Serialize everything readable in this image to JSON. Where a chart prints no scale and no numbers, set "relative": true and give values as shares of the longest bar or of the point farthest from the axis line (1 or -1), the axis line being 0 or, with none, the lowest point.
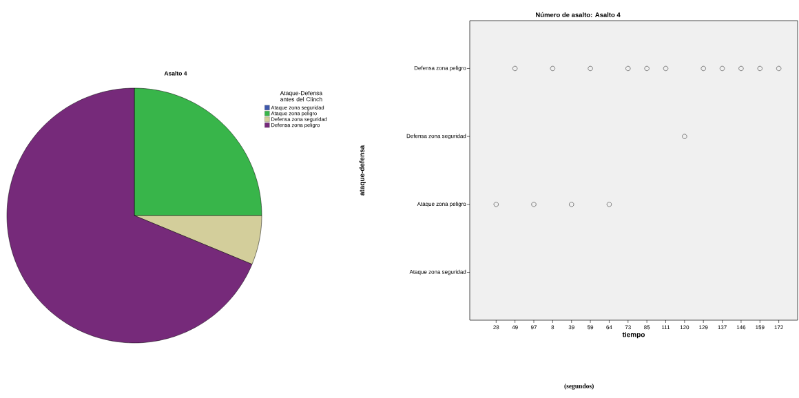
{
  "chart_data": [
    {
      "type": "pie",
      "title": "Asalto 4",
      "legend_title": "Ataque-Defensa antes del Clinch",
      "categories": [
        "Ataque zona seguridad",
        "Ataque zona peligro",
        "Defensa zona seguridad",
        "Defensa zona peligro"
      ],
      "values": [
        0,
        25,
        6.25,
        68.75
      ],
      "colors": [
        "#3e58ac",
        "#38b54a",
        "#d3ce9b",
        "#762a7a"
      ],
      "legend": "top right"
    },
    {
      "type": "scatter",
      "title": "Número de asalto: Asalto 4",
      "xlabel": "tiempo",
      "ylabel": "ataque-defensa",
      "categories": [
        "28",
        "49",
        "97",
        "8",
        "39",
        "59",
        "64",
        "73",
        "85",
        "111",
        "120",
        "129",
        "137",
        "146",
        "159",
        "172"
      ],
      "relative": true,
      "values": [
        0.46,
        1,
        0.46,
        1,
        0.46,
        1,
        0.46,
        1,
        1,
        1,
        0.73,
        1,
        1,
        1,
        1,
        1
      ],
      "marker": "circle",
      "annotations": [
        "Defensa zona peligro",
        "Defensa zona seguridad",
        "Ataque zona peligro",
        "Ataque zona seguridad",
        "(segundos)"
      ]
    }
  ]
}
